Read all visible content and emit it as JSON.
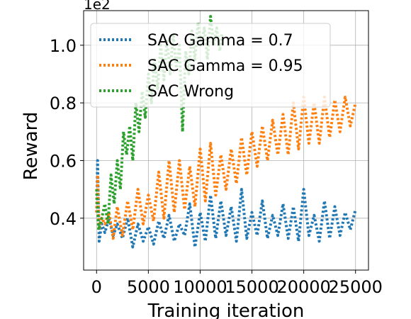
{
  "chart_data": {
    "type": "line",
    "xlabel": "Training iteration",
    "ylabel": "Reward",
    "y_scale_label": "1e2",
    "xlim": [
      -1250,
      26250
    ],
    "ylim": [
      0.22,
      1.12
    ],
    "x_ticks": [
      0,
      5000,
      10000,
      15000,
      20000,
      25000
    ],
    "x_tick_labels": [
      "0",
      "5000",
      "10000",
      "15000",
      "20000",
      "25000"
    ],
    "y_ticks": [
      0.4,
      0.6,
      0.8,
      1.0
    ],
    "y_tick_labels": [
      "0.4",
      "0.6",
      "0.8",
      "1.0"
    ],
    "grid": true,
    "legend_position": "top-left",
    "series": [
      {
        "name": "SAC Gamma = 0.7",
        "color": "#1f77b4",
        "x": [
          0,
          100,
          250,
          500,
          800,
          1200,
          1600,
          2000,
          2500,
          3000,
          3500,
          4000,
          4500,
          5000,
          5500,
          6000,
          6500,
          7000,
          7500,
          8000,
          8500,
          9000,
          9500,
          10000,
          10500,
          11000,
          11500,
          12000,
          12500,
          13000,
          13500,
          14000,
          14500,
          15000,
          15500,
          16000,
          16500,
          17000,
          17500,
          18000,
          18500,
          19000,
          19500,
          20000,
          20500,
          21000,
          21500,
          22000,
          22500,
          23000,
          23500,
          24000,
          24500,
          25000
        ],
        "y": [
          0.42,
          0.6,
          0.32,
          0.38,
          0.35,
          0.4,
          0.34,
          0.38,
          0.33,
          0.4,
          0.3,
          0.38,
          0.32,
          0.37,
          0.31,
          0.39,
          0.33,
          0.41,
          0.32,
          0.38,
          0.34,
          0.45,
          0.3,
          0.42,
          0.32,
          0.48,
          0.33,
          0.46,
          0.34,
          0.44,
          0.32,
          0.5,
          0.33,
          0.42,
          0.34,
          0.46,
          0.33,
          0.41,
          0.34,
          0.45,
          0.33,
          0.44,
          0.32,
          0.5,
          0.34,
          0.41,
          0.32,
          0.46,
          0.33,
          0.44,
          0.34,
          0.42,
          0.36,
          0.43
        ]
      },
      {
        "name": "SAC Gamma = 0.95",
        "color": "#ff7f0e",
        "x": [
          0,
          100,
          250,
          500,
          800,
          1200,
          1600,
          2000,
          2500,
          3000,
          3500,
          4000,
          4500,
          5000,
          5500,
          6000,
          6500,
          7000,
          7500,
          8000,
          8500,
          9000,
          9500,
          10000,
          10500,
          11000,
          11500,
          12000,
          12500,
          13000,
          13500,
          14000,
          14500,
          15000,
          15500,
          16000,
          16500,
          17000,
          17500,
          18000,
          18500,
          19000,
          19500,
          20000,
          20500,
          21000,
          21500,
          22000,
          22500,
          23000,
          23500,
          24000,
          24500,
          25000
        ],
        "y": [
          0.42,
          0.55,
          0.36,
          0.4,
          0.38,
          0.42,
          0.33,
          0.44,
          0.34,
          0.46,
          0.36,
          0.5,
          0.38,
          0.48,
          0.39,
          0.56,
          0.4,
          0.6,
          0.42,
          0.6,
          0.43,
          0.58,
          0.44,
          0.64,
          0.46,
          0.66,
          0.48,
          0.62,
          0.5,
          0.64,
          0.52,
          0.68,
          0.55,
          0.7,
          0.58,
          0.72,
          0.6,
          0.74,
          0.62,
          0.76,
          0.62,
          0.8,
          0.64,
          0.82,
          0.66,
          0.8,
          0.66,
          0.82,
          0.68,
          0.81,
          0.7,
          0.82,
          0.72,
          0.8
        ]
      },
      {
        "name": "SAC Wrong",
        "color": "#2ca02c",
        "x": [
          0,
          200,
          500,
          800,
          1100,
          1400,
          1700,
          2000,
          2300,
          2600,
          2900,
          3200,
          3500,
          3800,
          4100,
          4400,
          4700,
          5000,
          5300,
          5600,
          5900,
          6200,
          6500,
          6800,
          7100,
          7400,
          7700,
          8000,
          8300,
          8600,
          8900,
          9200,
          9500,
          9800,
          10100,
          10400,
          10700,
          11000,
          11300,
          11600,
          11900,
          12100
        ],
        "y": [
          0.5,
          0.36,
          0.4,
          0.45,
          0.38,
          0.55,
          0.45,
          0.6,
          0.5,
          0.7,
          0.62,
          0.72,
          0.6,
          0.8,
          0.7,
          0.84,
          0.75,
          0.9,
          0.8,
          0.95,
          0.85,
          1.0,
          0.88,
          1.02,
          0.9,
          1.04,
          0.92,
          1.0,
          0.7,
          0.98,
          0.9,
          1.05,
          0.95,
          1.08,
          1.0,
          1.06,
          0.95,
          1.1,
          1.0,
          1.06,
          0.98,
          1.04
        ]
      }
    ]
  }
}
